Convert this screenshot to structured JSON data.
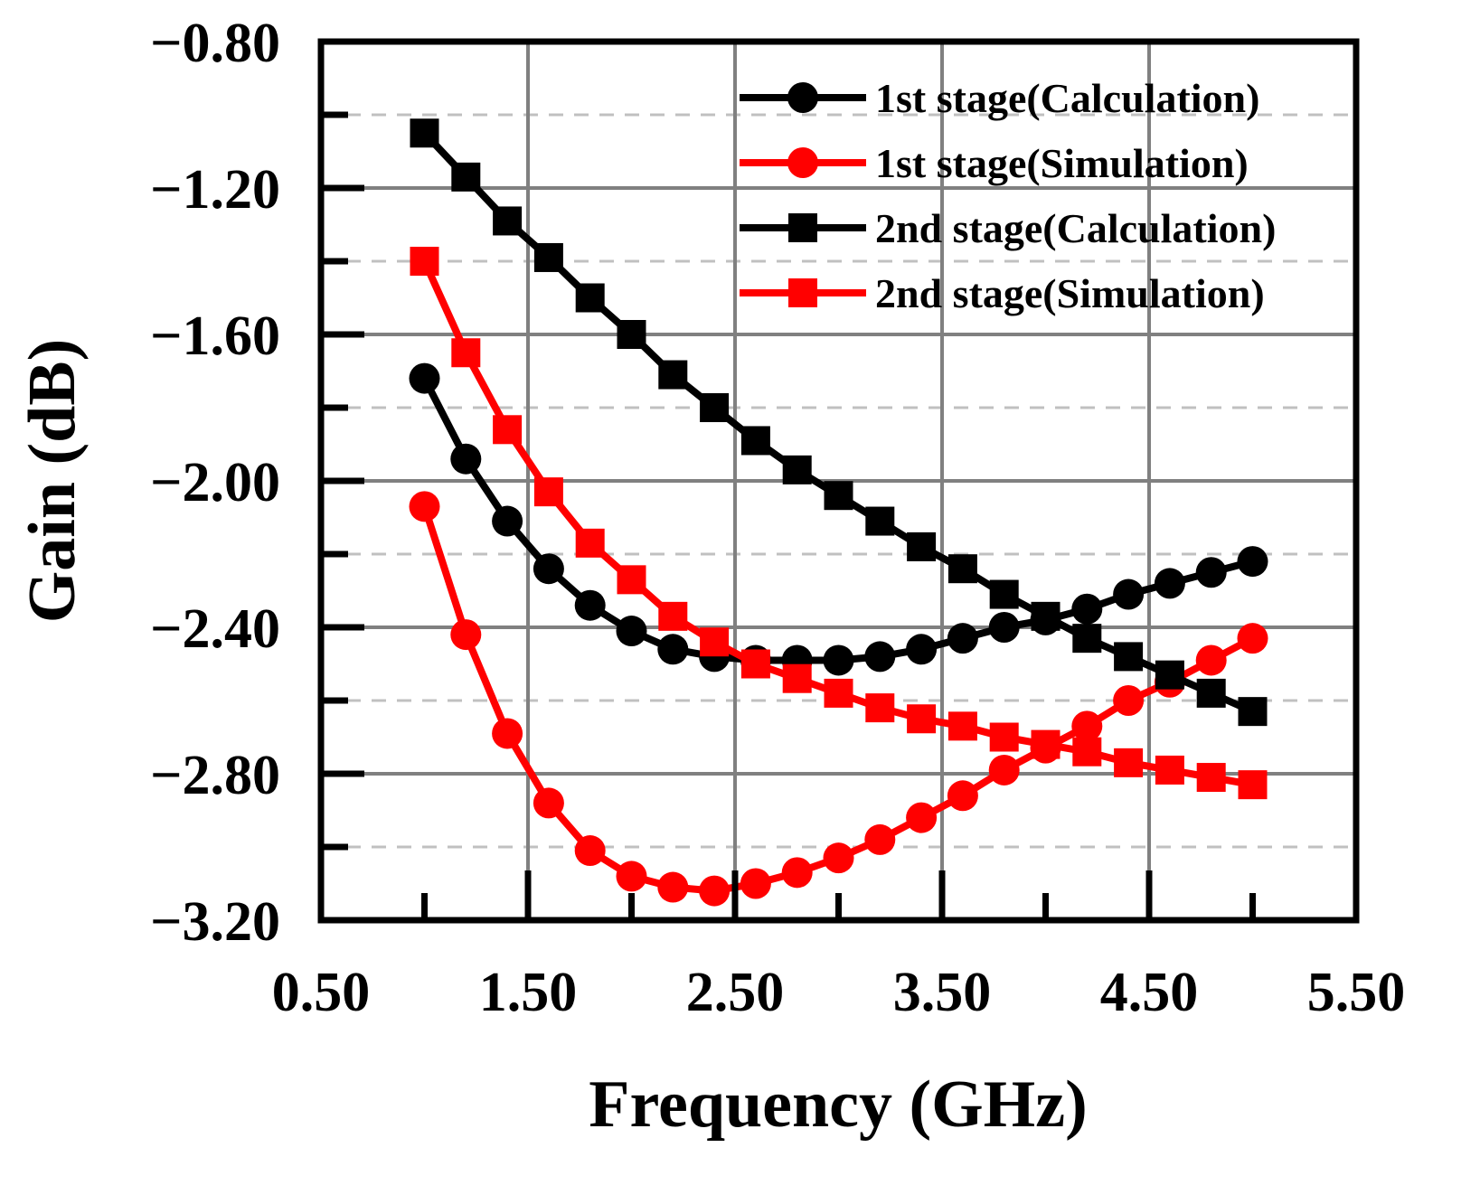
{
  "chart_data": {
    "type": "line",
    "xlabel": "Frequency (GHz)",
    "ylabel": "Gain (dB)",
    "xlim": [
      0.5,
      5.5
    ],
    "ylim": [
      -3.2,
      -0.8
    ],
    "x_ticks": [
      "0.50",
      "1.50",
      "2.50",
      "3.50",
      "4.50",
      "5.50"
    ],
    "y_ticks": [
      "−0.80",
      "−1.20",
      "−1.60",
      "−2.00",
      "−2.40",
      "−2.80",
      "−3.20"
    ],
    "grid": true,
    "legend_position": "top-right",
    "x": [
      1.0,
      1.2,
      1.4,
      1.6,
      1.8,
      2.0,
      2.2,
      2.4,
      2.6,
      2.8,
      3.0,
      3.2,
      3.4,
      3.6,
      3.8,
      4.0,
      4.2,
      4.4,
      4.6,
      4.8,
      5.0
    ],
    "series": [
      {
        "name": "1st stage(Calculation)",
        "color": "#000000",
        "marker": "circle",
        "values": [
          -1.72,
          -1.94,
          -2.11,
          -2.24,
          -2.34,
          -2.41,
          -2.46,
          -2.48,
          -2.49,
          -2.49,
          -2.49,
          -2.48,
          -2.46,
          -2.43,
          -2.4,
          -2.38,
          -2.35,
          -2.31,
          -2.28,
          -2.25,
          -2.22
        ]
      },
      {
        "name": "1st stage(Simulation)",
        "color": "#ff0000",
        "marker": "circle",
        "values": [
          -2.07,
          -2.42,
          -2.69,
          -2.88,
          -3.01,
          -3.08,
          -3.11,
          -3.12,
          -3.1,
          -3.07,
          -3.03,
          -2.98,
          -2.92,
          -2.86,
          -2.79,
          -2.73,
          -2.67,
          -2.6,
          -2.55,
          -2.49,
          -2.43
        ]
      },
      {
        "name": "2nd stage(Calculation)",
        "color": "#000000",
        "marker": "square",
        "values": [
          -1.05,
          -1.17,
          -1.29,
          -1.39,
          -1.5,
          -1.6,
          -1.71,
          -1.8,
          -1.89,
          -1.97,
          -2.04,
          -2.11,
          -2.18,
          -2.24,
          -2.31,
          -2.37,
          -2.43,
          -2.48,
          -2.53,
          -2.58,
          -2.63
        ]
      },
      {
        "name": "2nd stage(Simulation)",
        "color": "#ff0000",
        "marker": "square",
        "values": [
          -1.4,
          -1.65,
          -1.86,
          -2.03,
          -2.17,
          -2.27,
          -2.37,
          -2.44,
          -2.5,
          -2.54,
          -2.58,
          -2.62,
          -2.65,
          -2.67,
          -2.7,
          -2.72,
          -2.74,
          -2.77,
          -2.79,
          -2.81,
          -2.83
        ]
      }
    ]
  }
}
